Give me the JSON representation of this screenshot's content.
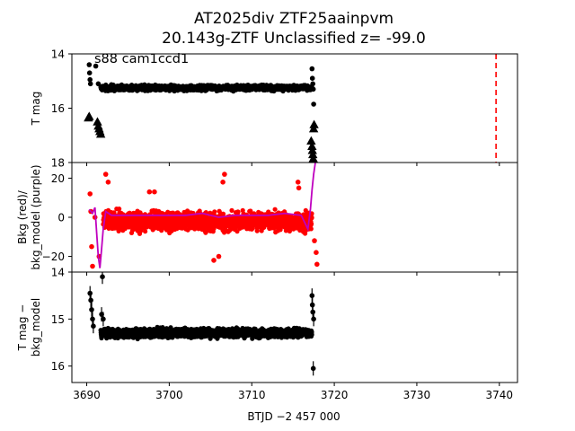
{
  "figure": {
    "title_line1": "AT2025div  ZTF25aainpvm",
    "title_line2": "20.143g-ZTF Unclassified z= -99.0",
    "annotation": "s88 cam1ccd1",
    "xlabel": "BTJD −2 457 000",
    "x_ticks": [
      3690,
      3700,
      3710,
      3720,
      3730,
      3740
    ],
    "xlim": [
      3688.2,
      3742.2
    ]
  },
  "chart_data": [
    {
      "type": "scatter",
      "panel": "top",
      "ylabel": "T mag",
      "ylim": [
        18,
        14
      ],
      "y_inverted": true,
      "y_ticks": [
        14,
        16,
        18
      ],
      "x_ticks": [
        3690,
        3700,
        3710,
        3720,
        3730,
        3740
      ],
      "series": [
        {
          "color": "#000000",
          "marker": "dot",
          "band": {
            "x_start": 3691.7,
            "x_end": 3717.3,
            "y_center": 15.25,
            "spread": 0.14
          }
        },
        {
          "color": "#000000",
          "marker": "dot",
          "points": [
            [
              3690.3,
              14.4
            ],
            [
              3690.35,
              14.7
            ],
            [
              3690.4,
              14.95
            ],
            [
              3690.45,
              15.1
            ],
            [
              3691.1,
              14.45
            ],
            [
              3691.4,
              15.1
            ],
            [
              3691.9,
              15.3
            ],
            [
              3717.3,
              14.55
            ],
            [
              3717.35,
              14.9
            ],
            [
              3717.4,
              15.1
            ],
            [
              3717.45,
              15.3
            ],
            [
              3717.5,
              15.85
            ]
          ]
        },
        {
          "color": "#000000",
          "marker": "triangle",
          "points": [
            [
              3690.2,
              16.35
            ],
            [
              3690.3,
              16.3
            ],
            [
              3691.3,
              16.5
            ],
            [
              3691.4,
              16.65
            ],
            [
              3691.5,
              16.75
            ],
            [
              3691.6,
              16.85
            ],
            [
              3691.7,
              16.95
            ],
            [
              3717.2,
              17.2
            ],
            [
              3717.3,
              17.4
            ],
            [
              3717.35,
              17.55
            ],
            [
              3717.4,
              17.7
            ],
            [
              3717.45,
              17.85
            ],
            [
              3717.5,
              16.75
            ],
            [
              3717.55,
              16.6
            ]
          ]
        }
      ],
      "vline": {
        "x": 3739.6,
        "color": "#ff0000",
        "style": "dashed"
      }
    },
    {
      "type": "scatter",
      "panel": "middle",
      "ylabel_line1": "Bkg (red)/",
      "ylabel_line2": "bkg_model (purple)",
      "ylim": [
        -28,
        28
      ],
      "y_ticks": [
        -20,
        0,
        20
      ],
      "x_ticks": [
        3690,
        3700,
        3710,
        3720,
        3730,
        3740
      ],
      "series": [
        {
          "color": "#ff0000",
          "marker": "dot",
          "band": {
            "x_start": 3692.0,
            "x_end": 3717.3,
            "y_center": -2,
            "spread": 7
          }
        },
        {
          "color": "#ff0000",
          "marker": "dot",
          "points": [
            [
              3690.4,
              12
            ],
            [
              3690.5,
              3
            ],
            [
              3690.6,
              -15
            ],
            [
              3690.7,
              -25
            ],
            [
              3691.0,
              0
            ],
            [
              3691.5,
              -20
            ],
            [
              3692.3,
              22
            ],
            [
              3692.6,
              18
            ],
            [
              3697.6,
              13
            ],
            [
              3698.2,
              13
            ],
            [
              3705.4,
              -22
            ],
            [
              3706.0,
              -20
            ],
            [
              3706.5,
              18
            ],
            [
              3706.7,
              22
            ],
            [
              3715.6,
              18
            ],
            [
              3715.7,
              15
            ],
            [
              3717.6,
              -12
            ],
            [
              3717.8,
              -18
            ],
            [
              3717.9,
              -24
            ]
          ]
        },
        {
          "color": "#bf00bf",
          "type": "line",
          "x": [
            3690.3,
            3690.7,
            3691.0,
            3691.2,
            3691.4,
            3691.6,
            3691.8,
            3692.0,
            3692.3,
            3693.0,
            3694.0,
            3696.0,
            3698.0,
            3700.0,
            3702.0,
            3704.0,
            3706.0,
            3708.0,
            3710.0,
            3712.0,
            3714.0,
            3716.0,
            3716.8,
            3717.1,
            3717.3,
            3717.5,
            3717.7
          ],
          "y": [
            4,
            2,
            5,
            -8,
            -20,
            -26,
            -16,
            -6,
            3,
            1,
            1,
            1,
            1,
            1,
            1,
            2,
            0,
            1,
            1,
            1,
            2,
            1,
            -6,
            4,
            14,
            22,
            28
          ]
        }
      ]
    },
    {
      "type": "scatter",
      "panel": "bottom",
      "ylabel_line1": "T mag −",
      "ylabel_line2": "bkg_model",
      "ylim": [
        16.35,
        14
      ],
      "y_inverted": true,
      "y_ticks": [
        14,
        15,
        16
      ],
      "x_ticks": [
        3690,
        3700,
        3710,
        3720,
        3730,
        3740
      ],
      "series": [
        {
          "color": "#000000",
          "marker": "dot",
          "band": {
            "x_start": 3691.7,
            "x_end": 3717.3,
            "y_center": 15.3,
            "spread": 0.14
          }
        },
        {
          "color": "#000000",
          "marker": "dot",
          "errorbars": true,
          "points": [
            [
              3690.4,
              14.45
            ],
            [
              3690.5,
              14.6
            ],
            [
              3690.6,
              14.8
            ],
            [
              3690.7,
              15.0
            ],
            [
              3690.8,
              15.15
            ],
            [
              3691.9,
              14.1
            ],
            [
              3691.8,
              14.9
            ],
            [
              3692.0,
              15.0
            ],
            [
              3717.3,
              14.5
            ],
            [
              3717.35,
              14.7
            ],
            [
              3717.4,
              14.85
            ],
            [
              3717.5,
              15.0
            ],
            [
              3717.45,
              16.05
            ]
          ]
        }
      ]
    }
  ]
}
